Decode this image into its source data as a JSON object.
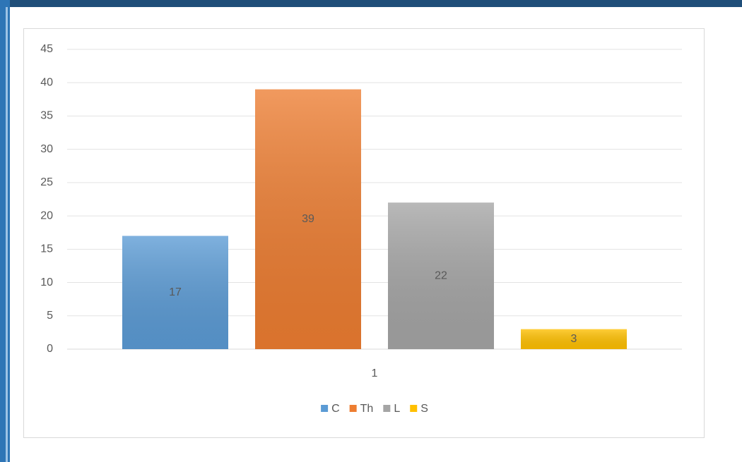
{
  "chart_data": {
    "type": "bar",
    "categories": [
      "1"
    ],
    "series": [
      {
        "name": "C",
        "color": "#5b9bd5",
        "values": [
          17
        ]
      },
      {
        "name": "Th",
        "color": "#ed7d31",
        "values": [
          39
        ]
      },
      {
        "name": "L",
        "color": "#a5a5a5",
        "values": [
          22
        ]
      },
      {
        "name": "S",
        "color": "#ffc000",
        "values": [
          3
        ]
      }
    ],
    "ylim": [
      0,
      45
    ],
    "yticks": [
      0,
      5,
      10,
      15,
      20,
      25,
      30,
      35,
      40,
      45
    ],
    "grid": true,
    "legend": "bottom",
    "data_labels": "center"
  }
}
